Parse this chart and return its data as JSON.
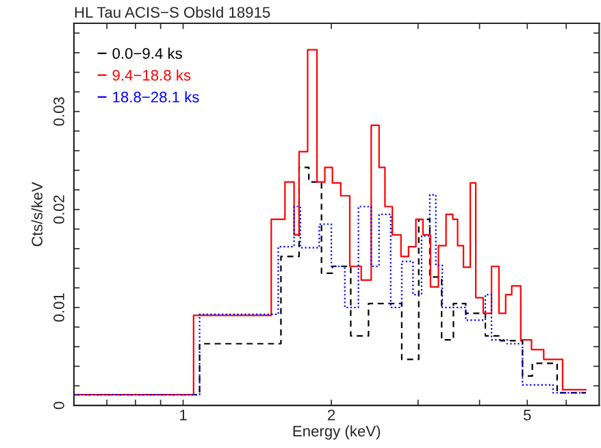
{
  "chart_data": {
    "type": "step",
    "title": "HL Tau ACIS−S ObsId 18915",
    "xlabel": "Energy (keV)",
    "ylabel": "Cts/s/keV",
    "log": "x",
    "xlim": [
      0.6,
      7
    ],
    "ylim": [
      0,
      0.039
    ],
    "xticks": [
      {
        "value": 0.7,
        "label": null
      },
      {
        "value": 0.8,
        "label": null
      },
      {
        "value": 0.9,
        "label": null
      },
      1,
      2,
      {
        "value": 3,
        "label": null
      },
      {
        "value": 4,
        "label": null
      },
      5,
      {
        "value": 6,
        "label": null
      }
    ],
    "yticks": [
      0,
      {
        "value": 0.002,
        "label": null
      },
      {
        "value": 0.004,
        "label": null
      },
      {
        "value": 0.006,
        "label": null
      },
      {
        "value": 0.008,
        "label": null
      },
      0.01,
      {
        "value": 0.012,
        "label": null
      },
      {
        "value": 0.014,
        "label": null
      },
      {
        "value": 0.016,
        "label": null
      },
      {
        "value": 0.018,
        "label": null
      },
      0.02,
      {
        "value": 0.022,
        "label": null
      },
      {
        "value": 0.024,
        "label": null
      },
      {
        "value": 0.026,
        "label": null
      },
      {
        "value": 0.028,
        "label": null
      },
      0.03,
      {
        "value": 0.032,
        "label": null
      },
      {
        "value": 0.034,
        "label": null
      },
      {
        "value": 0.036,
        "label": null
      },
      {
        "value": 0.038,
        "label": null
      }
    ],
    "grid": false,
    "legend": "top left",
    "marker": "none",
    "series": [
      {
        "name": "0.0−9.4 ks",
        "color": "#000000",
        "line_style": "dashed",
        "x": [
          0.6,
          1.08,
          1.58,
          1.72,
          1.8,
          1.91,
          2.01,
          2.19,
          2.38,
          2.78,
          3.01,
          3.17,
          3.35,
          3.54,
          3.75,
          4.11,
          4.41,
          4.89,
          5.12,
          5.75,
          6.58
        ],
        "values": [
          0.0011,
          0.0063,
          0.0152,
          0.0243,
          0.0228,
          0.0135,
          0.0142,
          0.0071,
          0.0104,
          0.0047,
          0.019,
          0.0131,
          0.0067,
          0.0104,
          0.0094,
          0.0071,
          0.0066,
          0.003,
          0.0043,
          0.0013,
          0.0013
        ]
      },
      {
        "name": "9.4−18.8 ks",
        "color": "#ff0000",
        "line_style": "solid",
        "x": [
          0.6,
          1.05,
          1.51,
          1.61,
          1.68,
          1.72,
          1.79,
          1.87,
          1.94,
          2.01,
          2.09,
          2.18,
          2.3,
          2.41,
          2.5,
          2.57,
          2.66,
          2.77,
          2.87,
          2.97,
          3.07,
          3.18,
          3.3,
          3.42,
          3.53,
          3.61,
          3.71,
          3.83,
          3.93,
          4.07,
          4.23,
          4.38,
          4.52,
          4.65,
          4.85,
          5.1,
          5.4,
          5.9,
          6.58
        ],
        "values": [
          0.0011,
          0.0092,
          0.019,
          0.0228,
          0.0174,
          0.0259,
          0.0363,
          0.0228,
          0.0243,
          0.0227,
          0.0214,
          0.0142,
          0.0128,
          0.0286,
          0.0243,
          0.0203,
          0.0174,
          0.0152,
          0.0162,
          0.019,
          0.0174,
          0.0121,
          0.0163,
          0.0195,
          0.019,
          0.0163,
          0.0141,
          0.0227,
          0.011,
          0.0094,
          0.0142,
          0.0094,
          0.0113,
          0.0122,
          0.0067,
          0.0057,
          0.0047,
          0.0016,
          0.0016
        ]
      },
      {
        "name": "18.8−28.1 ks",
        "color": "#0000ff",
        "line_style": "dotted",
        "x": [
          0.6,
          1.08,
          1.56,
          1.68,
          1.73,
          1.89,
          2.0,
          2.13,
          2.27,
          2.41,
          2.5,
          2.64,
          2.78,
          2.93,
          3.05,
          3.17,
          3.26,
          3.36,
          3.75,
          4.11,
          4.23,
          4.55,
          4.89,
          5.64,
          6.58
        ],
        "values": [
          0.0011,
          0.0093,
          0.0162,
          0.0203,
          0.0161,
          0.0185,
          0.0142,
          0.01,
          0.0203,
          0.0142,
          0.0195,
          0.01,
          0.0147,
          0.0113,
          0.0173,
          0.0215,
          0.0143,
          0.01,
          0.0087,
          0.0113,
          0.0067,
          0.0063,
          0.0021,
          0.0013,
          0.0013
        ]
      }
    ]
  }
}
